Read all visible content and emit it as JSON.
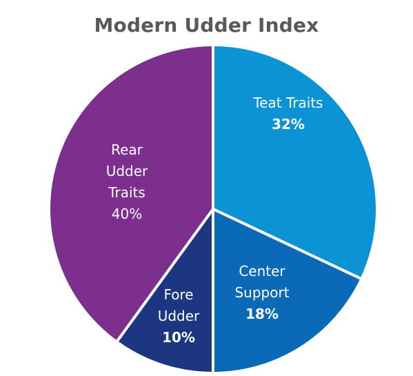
{
  "chart_data": {
    "type": "pie",
    "title": "Modern Udder Index",
    "slices": [
      {
        "label": [
          "Teat Traits"
        ],
        "value": 32,
        "pct_label": "32%",
        "color": "#0b93d6",
        "bold_pct": true
      },
      {
        "label": [
          "Center",
          "Support"
        ],
        "value": 18,
        "pct_label": "18%",
        "color": "#0a6ab8",
        "bold_pct": true
      },
      {
        "label": [
          "Fore",
          "Udder"
        ],
        "value": 10,
        "pct_label": "10%",
        "color": "#1c3681",
        "bold_pct": true
      },
      {
        "label": [
          "Rear",
          "Udder",
          "Traits"
        ],
        "value": 40,
        "pct_label": "40%",
        "color": "#7d2f8e",
        "bold_pct": false
      }
    ]
  }
}
